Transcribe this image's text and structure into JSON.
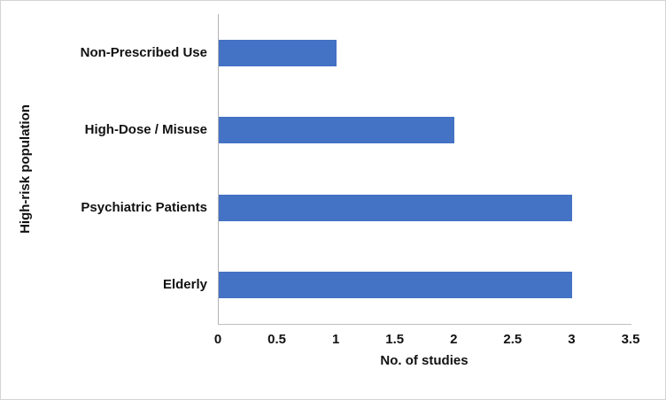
{
  "chart_data": {
    "type": "bar",
    "orientation": "horizontal",
    "title": "",
    "xlabel": "No. of studies",
    "ylabel": "High-risk population",
    "categories": [
      "Non-Prescribed Use",
      "High-Dose / Misuse",
      "Psychiatric Patients",
      "Elderly"
    ],
    "values": [
      1,
      2,
      3,
      3
    ],
    "xlim": [
      0,
      3.5
    ],
    "xticks": [
      0,
      0.5,
      1,
      1.5,
      2,
      2.5,
      3,
      3.5
    ],
    "xtick_labels": [
      "0",
      "0.5",
      "1",
      "1.5",
      "2",
      "2.5",
      "3",
      "3.5"
    ],
    "bar_color": "#4472C4",
    "grid": false,
    "legend": false
  }
}
